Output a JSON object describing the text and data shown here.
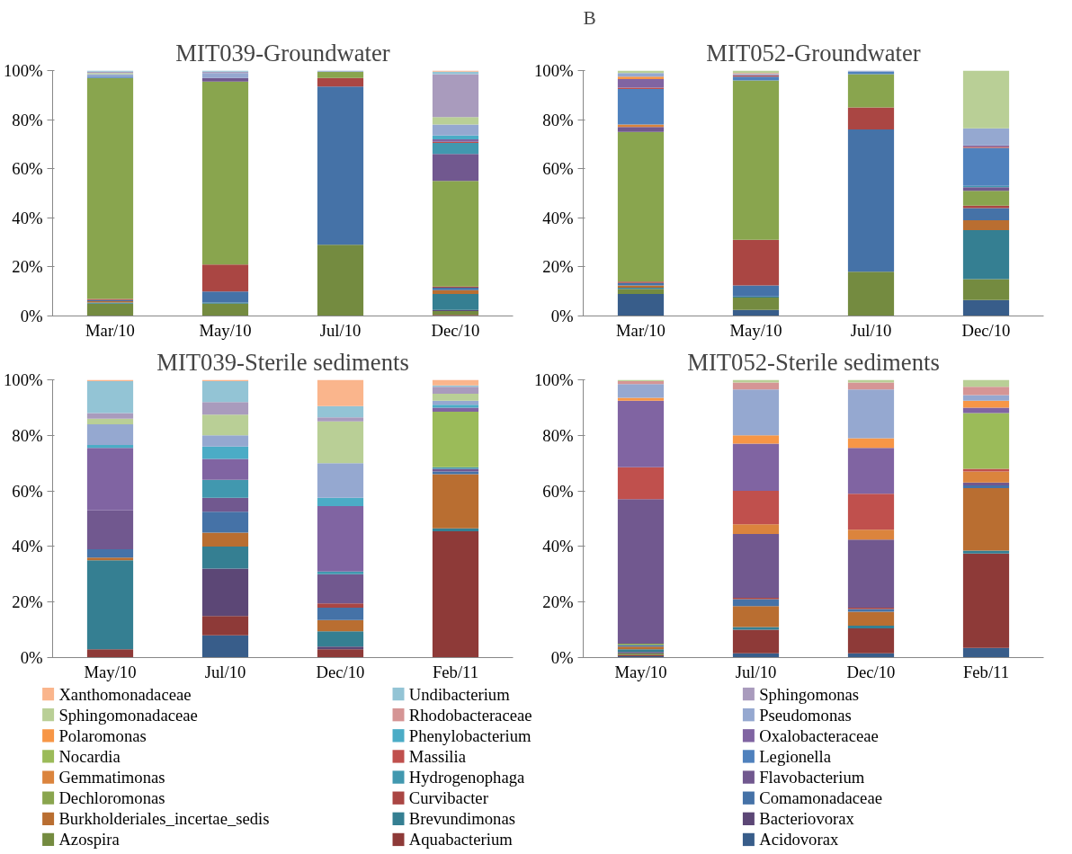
{
  "chart_data": [
    {
      "type": "bar",
      "title": "MIT039-Groundwater",
      "categories": [
        "Mar/10",
        "May/10",
        "Jul/10",
        "Dec/10"
      ],
      "stacked": true,
      "ylim": [
        0,
        100
      ],
      "yticks": [
        {
          "value": 0,
          "label": "0%"
        },
        {
          "value": 20,
          "label": "20%"
        },
        {
          "value": 40,
          "label": "40%"
        },
        {
          "value": 60,
          "label": "60%"
        },
        {
          "value": 80,
          "label": "80%"
        },
        {
          "value": 100,
          "label": "100%"
        }
      ],
      "legend": "bottom",
      "series": [
        {
          "name": "Acidovorax",
          "color": "#385d8a",
          "values": [
            0,
            0,
            0,
            0
          ]
        },
        {
          "name": "Aquabacterium",
          "color": "#8e3a38",
          "values": [
            0,
            0,
            0,
            0.5
          ]
        },
        {
          "name": "Azospira",
          "color": "#748b40",
          "values": [
            5,
            5,
            29,
            1.5
          ]
        },
        {
          "name": "Bacteriovorax",
          "color": "#5c4776",
          "values": [
            0,
            0,
            0,
            0.5
          ]
        },
        {
          "name": "Brevundimonas",
          "color": "#357f92",
          "values": [
            0.5,
            0.5,
            0,
            6.5
          ]
        },
        {
          "name": "Burkholderiales_incertae_sedis",
          "color": "#b96e31",
          "values": [
            0.5,
            0,
            0,
            1.5
          ]
        },
        {
          "name": "Comamonadaceae",
          "color": "#4572a7",
          "values": [
            0.5,
            4.5,
            64.5,
            1
          ]
        },
        {
          "name": "Curvibacter",
          "color": "#aa4643",
          "values": [
            0.5,
            11,
            3.5,
            0.5
          ]
        },
        {
          "name": "Dechloromonas",
          "color": "#89a54e",
          "values": [
            90,
            74.5,
            2.5,
            43
          ]
        },
        {
          "name": "Flavobacterium",
          "color": "#71588f",
          "values": [
            0,
            1.5,
            0,
            11
          ]
        },
        {
          "name": "Hydrogenophaga",
          "color": "#4198af",
          "values": [
            0,
            0,
            0,
            4.5
          ]
        },
        {
          "name": "Gemmatimonas",
          "color": "#db843d",
          "values": [
            0,
            0,
            0,
            0
          ]
        },
        {
          "name": "Legionella",
          "color": "#4f81bd",
          "values": [
            0.5,
            0,
            0,
            0
          ]
        },
        {
          "name": "Massilia",
          "color": "#c0504d",
          "values": [
            0,
            0,
            0,
            0.5
          ]
        },
        {
          "name": "Nocardia",
          "color": "#9bbb59",
          "values": [
            0,
            0,
            0,
            0
          ]
        },
        {
          "name": "Oxalobacteraceae",
          "color": "#8064a2",
          "values": [
            0,
            0,
            0,
            1
          ]
        },
        {
          "name": "Phenylobacterium",
          "color": "#4bacc6",
          "values": [
            0,
            0,
            0,
            1.5
          ]
        },
        {
          "name": "Polaromonas",
          "color": "#f79646",
          "values": [
            0,
            0,
            0,
            0
          ]
        },
        {
          "name": "Pseudomonas",
          "color": "#95a8d0",
          "values": [
            1,
            2,
            0.5,
            4.5
          ]
        },
        {
          "name": "Rhodobacteraceae",
          "color": "#d59595",
          "values": [
            0,
            0,
            0,
            0
          ]
        },
        {
          "name": "Sphingomonadaceae",
          "color": "#b9cf96",
          "values": [
            0.5,
            0,
            0,
            3
          ]
        },
        {
          "name": "Sphingomonas",
          "color": "#a99bbd",
          "values": [
            0.5,
            0.5,
            0,
            17.5
          ]
        },
        {
          "name": "Undibacterium",
          "color": "#93c4d5",
          "values": [
            0.5,
            0.5,
            0,
            1
          ]
        },
        {
          "name": "Xanthomonadaceae",
          "color": "#fab58c",
          "values": [
            0,
            0,
            0,
            0.5
          ]
        }
      ]
    },
    {
      "type": "bar",
      "title": "MIT052-Groundwater",
      "annotations": [
        "B"
      ],
      "categories": [
        "Mar/10",
        "May/10",
        "Jul/10",
        "Dec/10"
      ],
      "stacked": true,
      "ylim": [
        0,
        100
      ],
      "yticks": [
        {
          "value": 0,
          "label": "0%"
        },
        {
          "value": 20,
          "label": "20%"
        },
        {
          "value": 40,
          "label": "40%"
        },
        {
          "value": 60,
          "label": "60%"
        },
        {
          "value": 80,
          "label": "80%"
        },
        {
          "value": 100,
          "label": "100%"
        }
      ],
      "series": [
        {
          "color": "#385d8a",
          "values": [
            9,
            2.5,
            0,
            6.5
          ]
        },
        {
          "color": "#8e3a38",
          "values": [
            0,
            0,
            0,
            0
          ]
        },
        {
          "color": "#748b40",
          "values": [
            2,
            5,
            18,
            8.5
          ]
        },
        {
          "color": "#5c4776",
          "values": [
            0,
            0,
            0,
            0
          ]
        },
        {
          "color": "#357f92",
          "values": [
            0.5,
            0.5,
            0,
            20
          ]
        },
        {
          "color": "#b96e31",
          "values": [
            1,
            0,
            0,
            4
          ]
        },
        {
          "color": "#4572a7",
          "values": [
            1,
            4.5,
            58,
            5
          ]
        },
        {
          "color": "#aa4643",
          "values": [
            0.5,
            18.5,
            9,
            1
          ]
        },
        {
          "color": "#89a54e",
          "values": [
            61,
            65,
            13.5,
            6
          ]
        },
        {
          "color": "#71588f",
          "values": [
            2,
            0,
            0,
            1.5
          ]
        },
        {
          "color": "#4198af",
          "values": [
            0,
            0,
            0,
            0.5
          ]
        },
        {
          "color": "#db843d",
          "values": [
            1,
            0,
            0,
            0
          ]
        },
        {
          "color": "#4f81bd",
          "values": [
            14.5,
            1.5,
            1,
            15.5
          ]
        },
        {
          "color": "#c0504d",
          "values": [
            0.5,
            0.5,
            0,
            0.5
          ]
        },
        {
          "color": "#9bbb59",
          "values": [
            0,
            0,
            0,
            0
          ]
        },
        {
          "color": "#8064a2",
          "values": [
            3.5,
            0,
            0,
            0.5
          ]
        },
        {
          "color": "#4bacc6",
          "values": [
            0,
            0,
            0,
            0
          ]
        },
        {
          "color": "#f79646",
          "values": [
            1,
            0,
            0,
            0
          ]
        },
        {
          "color": "#95a8d0",
          "values": [
            1.5,
            0.5,
            0.5,
            7
          ]
        },
        {
          "color": "#d59595",
          "values": [
            0,
            0.5,
            0,
            0
          ]
        },
        {
          "color": "#b9cf96",
          "values": [
            1,
            1,
            0,
            23.5
          ]
        },
        {
          "color": "#a99bbd",
          "values": [
            0,
            0,
            0,
            0
          ]
        },
        {
          "color": "#93c4d5",
          "values": [
            0,
            0,
            0,
            0
          ]
        },
        {
          "color": "#fab58c",
          "values": [
            0,
            0,
            0,
            0
          ]
        }
      ]
    },
    {
      "type": "bar",
      "title": "MIT039-Sterile sediments",
      "categories": [
        "May/10",
        "Jul/10",
        "Dec/10",
        "Feb/11"
      ],
      "stacked": true,
      "ylim": [
        0,
        100
      ],
      "yticks": [
        {
          "value": 0,
          "label": "0%"
        },
        {
          "value": 20,
          "label": "20%"
        },
        {
          "value": 40,
          "label": "40%"
        },
        {
          "value": 60,
          "label": "60%"
        },
        {
          "value": 80,
          "label": "80%"
        },
        {
          "value": 100,
          "label": "100%"
        }
      ],
      "series": [
        {
          "color": "#385d8a",
          "values": [
            0,
            8,
            0,
            0
          ]
        },
        {
          "color": "#8e3a38",
          "values": [
            3,
            7,
            3,
            45.5
          ]
        },
        {
          "color": "#748b40",
          "values": [
            0,
            0,
            0,
            0
          ]
        },
        {
          "color": "#5c4776",
          "values": [
            0,
            17,
            1,
            0
          ]
        },
        {
          "color": "#357f92",
          "values": [
            32,
            8,
            5.5,
            1
          ]
        },
        {
          "color": "#b96e31",
          "values": [
            1,
            5,
            4,
            19.5
          ]
        },
        {
          "color": "#4572a7",
          "values": [
            3,
            7.5,
            4.5,
            1
          ]
        },
        {
          "color": "#aa4643",
          "values": [
            0,
            0,
            1.5,
            0
          ]
        },
        {
          "color": "#89a54e",
          "values": [
            0,
            0,
            0,
            0
          ]
        },
        {
          "color": "#71588f",
          "values": [
            14,
            5,
            10.5,
            1
          ]
        },
        {
          "color": "#4198af",
          "values": [
            0,
            6.5,
            1,
            0.5
          ]
        },
        {
          "color": "#db843d",
          "values": [
            0,
            0,
            0,
            0
          ]
        },
        {
          "color": "#4f81bd",
          "values": [
            0,
            0,
            0,
            0
          ]
        },
        {
          "color": "#c0504d",
          "values": [
            0,
            0,
            0,
            0
          ]
        },
        {
          "color": "#9bbb59",
          "values": [
            0,
            0,
            0,
            20
          ]
        },
        {
          "color": "#8064a2",
          "values": [
            22.5,
            7.5,
            23.5,
            1.5
          ]
        },
        {
          "color": "#4bacc6",
          "values": [
            1,
            4.5,
            3,
            1
          ]
        },
        {
          "color": "#f79646",
          "values": [
            0,
            0,
            0,
            0
          ]
        },
        {
          "color": "#95a8d0",
          "values": [
            7.5,
            4,
            12.5,
            1.5
          ]
        },
        {
          "color": "#d59595",
          "values": [
            0,
            0,
            0,
            0
          ]
        },
        {
          "color": "#b9cf96",
          "values": [
            2,
            7.5,
            15,
            2.5
          ]
        },
        {
          "color": "#a99bbd",
          "values": [
            2,
            4.5,
            1.5,
            2.5
          ]
        },
        {
          "color": "#93c4d5",
          "values": [
            11.5,
            7.5,
            4,
            0.5
          ]
        },
        {
          "color": "#fab58c",
          "values": [
            0.5,
            0.5,
            9.5,
            2
          ]
        }
      ]
    },
    {
      "type": "bar",
      "title": "MIT052-Sterile sediments",
      "categories": [
        "May/10",
        "Jul/10",
        "Dec/10",
        "Feb/11"
      ],
      "stacked": true,
      "ylim": [
        0,
        100
      ],
      "yticks": [
        {
          "value": 0,
          "label": "0%"
        },
        {
          "value": 20,
          "label": "20%"
        },
        {
          "value": 40,
          "label": "40%"
        },
        {
          "value": 60,
          "label": "60%"
        },
        {
          "value": 80,
          "label": "80%"
        },
        {
          "value": 100,
          "label": "100%"
        }
      ],
      "series": [
        {
          "color": "#385d8a",
          "values": [
            0.5,
            1.5,
            1.5,
            3.5
          ]
        },
        {
          "color": "#8e3a38",
          "values": [
            0.5,
            8.5,
            9,
            34
          ]
        },
        {
          "color": "#748b40",
          "values": [
            0.5,
            0,
            0,
            0
          ]
        },
        {
          "color": "#5c4776",
          "values": [
            0.5,
            0,
            0,
            0
          ]
        },
        {
          "color": "#357f92",
          "values": [
            1,
            1,
            1,
            1
          ]
        },
        {
          "color": "#b96e31",
          "values": [
            1,
            7.5,
            5,
            22.5
          ]
        },
        {
          "color": "#4572a7",
          "values": [
            0.5,
            2.5,
            1,
            1
          ]
        },
        {
          "color": "#aa4643",
          "values": [
            0,
            0.5,
            0.5,
            0
          ]
        },
        {
          "color": "#89a54e",
          "values": [
            0.5,
            0,
            0,
            0
          ]
        },
        {
          "color": "#71588f",
          "values": [
            52,
            23,
            24.5,
            1
          ]
        },
        {
          "color": "#4198af",
          "values": [
            0,
            0,
            0,
            0
          ]
        },
        {
          "color": "#db843d",
          "values": [
            0,
            3.5,
            3.5,
            4
          ]
        },
        {
          "color": "#4f81bd",
          "values": [
            0,
            0,
            0,
            0
          ]
        },
        {
          "color": "#c0504d",
          "values": [
            11.5,
            12,
            13,
            1
          ]
        },
        {
          "color": "#9bbb59",
          "values": [
            0,
            0,
            0,
            20
          ]
        },
        {
          "color": "#8064a2",
          "values": [
            24,
            17,
            16.5,
            2
          ]
        },
        {
          "color": "#4bacc6",
          "values": [
            0,
            0,
            0,
            0
          ]
        },
        {
          "color": "#f79646",
          "values": [
            1,
            3,
            3.5,
            2.5
          ]
        },
        {
          "color": "#95a8d0",
          "values": [
            5,
            16.5,
            17.5,
            2
          ]
        },
        {
          "color": "#d59595",
          "values": [
            1,
            2.5,
            2.5,
            3
          ]
        },
        {
          "color": "#b9cf96",
          "values": [
            0.5,
            1,
            1,
            2.5
          ]
        },
        {
          "color": "#a99bbd",
          "values": [
            0,
            0,
            0,
            0
          ]
        },
        {
          "color": "#93c4d5",
          "values": [
            0,
            0,
            0,
            0
          ]
        },
        {
          "color": "#fab58c",
          "values": [
            0,
            0,
            0,
            0
          ]
        }
      ]
    }
  ]
}
